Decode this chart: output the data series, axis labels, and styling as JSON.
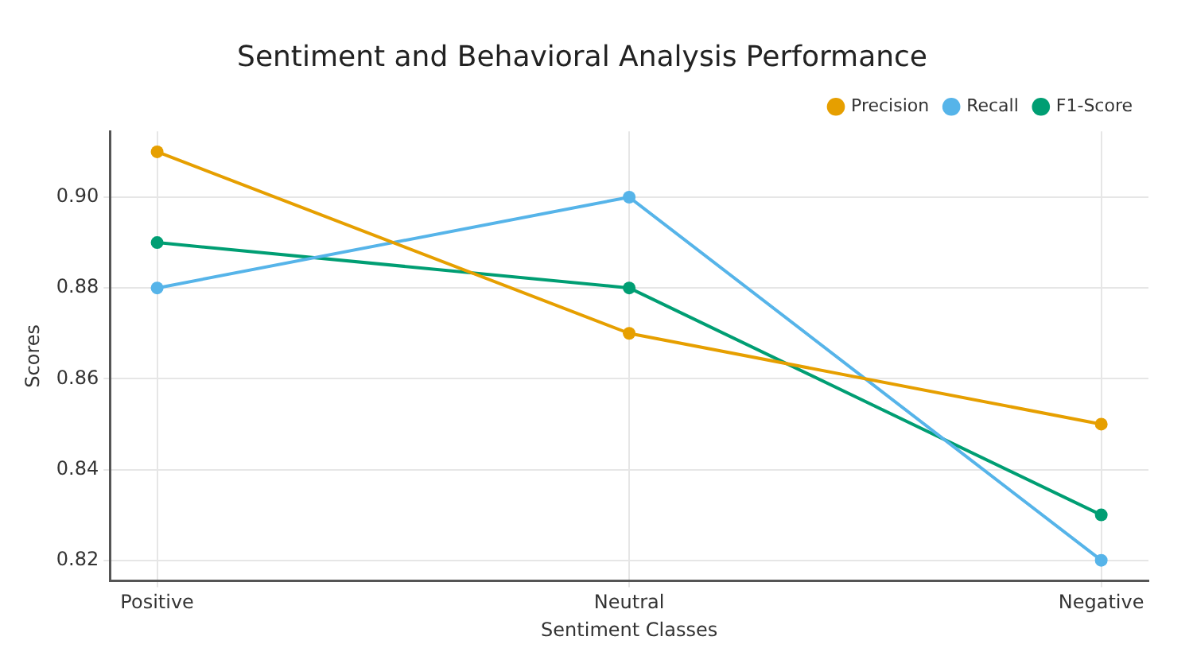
{
  "chart_data": {
    "type": "line",
    "title": "Sentiment and Behavioral Analysis Performance",
    "xlabel": "Sentiment Classes",
    "ylabel": "Scores",
    "categories": [
      "Positive",
      "Neutral",
      "Negative"
    ],
    "series": [
      {
        "name": "Precision",
        "color": "#e69f00",
        "values": [
          0.91,
          0.87,
          0.85
        ]
      },
      {
        "name": "Recall",
        "color": "#56b4e9",
        "values": [
          0.88,
          0.9,
          0.82
        ]
      },
      {
        "name": "F1-Score",
        "color": "#009e73",
        "values": [
          0.89,
          0.88,
          0.83
        ]
      }
    ],
    "ylim": [
      0.8155,
      0.9145
    ],
    "yticks": [
      0.82,
      0.84,
      0.86,
      0.88,
      {
        "value": 0.9,
        "label": "0.90"
      }
    ],
    "grid": true,
    "legend": "top right",
    "marker": "circle",
    "line_style": "solid"
  }
}
